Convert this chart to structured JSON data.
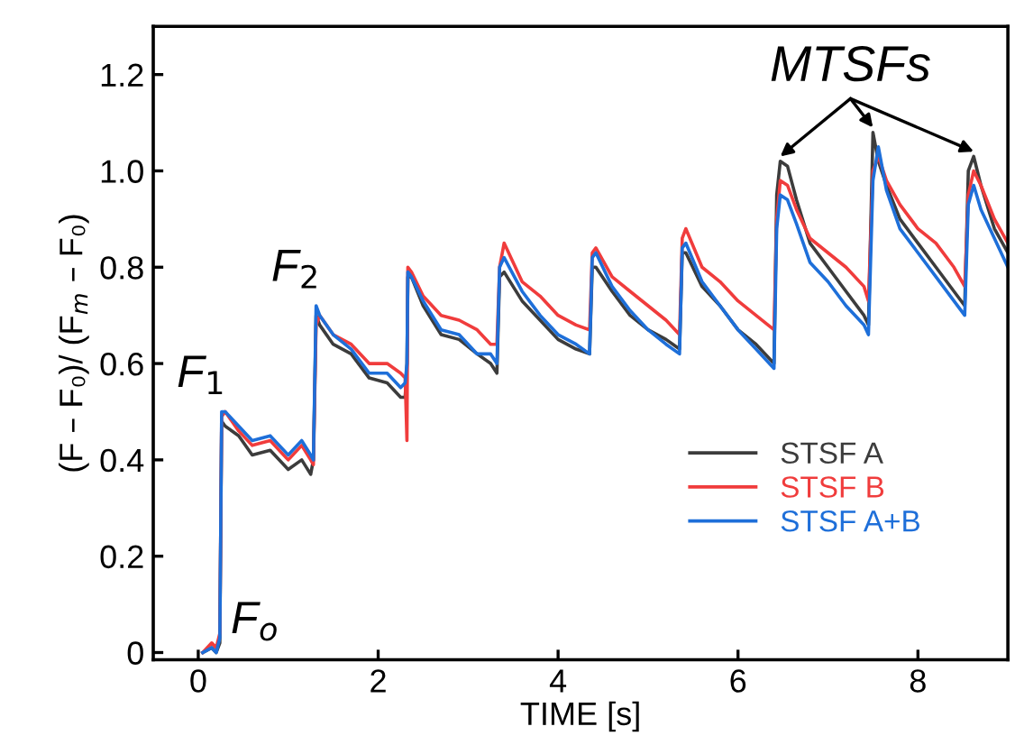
{
  "chart_data": {
    "type": "line",
    "xlabel": "TIME [s]",
    "ylabel": "(F – F₀)/ (F$_{m}$ – F₀)",
    "xlim": [
      -0.5,
      9.0
    ],
    "xticks": [
      0,
      2,
      4,
      6,
      8
    ],
    "ylim": [
      -0.015,
      1.3
    ],
    "yticks": [
      0,
      {
        "value": 0.2,
        "label": "0.2"
      },
      {
        "value": 0.4,
        "label": "0.4"
      },
      {
        "value": 0.6,
        "label": "0.6"
      },
      {
        "value": 0.8,
        "label": "0.8"
      },
      {
        "value": 1.0,
        "label": "1.0"
      },
      {
        "value": 1.2,
        "label": "1.2"
      }
    ],
    "x": [
      0.05,
      0.15,
      0.2,
      0.24,
      0.26,
      0.3,
      0.45,
      0.6,
      0.8,
      1.0,
      1.15,
      1.25,
      1.28,
      1.31,
      1.35,
      1.5,
      1.7,
      1.9,
      2.1,
      2.25,
      2.3,
      2.32,
      2.33,
      2.37,
      2.5,
      2.7,
      2.9,
      3.1,
      3.25,
      3.32,
      3.35,
      3.4,
      3.6,
      3.8,
      4.0,
      4.2,
      4.35,
      4.38,
      4.42,
      4.6,
      4.8,
      5.0,
      5.2,
      5.35,
      5.38,
      5.42,
      5.6,
      5.8,
      6.0,
      6.2,
      6.4,
      6.43,
      6.47,
      6.55,
      6.65,
      6.8,
      7.0,
      7.2,
      7.4,
      7.45,
      7.5,
      7.56,
      7.65,
      7.8,
      8.0,
      8.2,
      8.4,
      8.52,
      8.56,
      8.62,
      8.7,
      8.85,
      9.0
    ],
    "series": [
      {
        "name": "STSF A",
        "color": "#3c3c3c",
        "values": [
          0,
          0.01,
          0,
          0.02,
          0.48,
          0.47,
          0.45,
          0.41,
          0.42,
          0.38,
          0.4,
          0.37,
          0.4,
          0.7,
          0.68,
          0.64,
          0.62,
          0.57,
          0.56,
          0.53,
          0.53,
          0.6,
          0.78,
          0.78,
          0.72,
          0.66,
          0.65,
          0.62,
          0.6,
          0.58,
          0.78,
          0.79,
          0.73,
          0.69,
          0.65,
          0.63,
          0.62,
          0.8,
          0.8,
          0.75,
          0.7,
          0.67,
          0.65,
          0.63,
          0.83,
          0.83,
          0.76,
          0.72,
          0.67,
          0.64,
          0.6,
          0.95,
          1.02,
          1.01,
          0.94,
          0.85,
          0.8,
          0.75,
          0.7,
          0.68,
          1.08,
          1.02,
          0.97,
          0.9,
          0.85,
          0.8,
          0.75,
          0.72,
          1.0,
          1.03,
          0.97,
          0.88,
          0.83
        ]
      },
      {
        "name": "STSF B",
        "color": "#f03c3c",
        "values": [
          0,
          0.02,
          0.01,
          0.04,
          0.49,
          0.5,
          0.46,
          0.43,
          0.44,
          0.4,
          0.43,
          0.4,
          0.39,
          0.68,
          0.7,
          0.66,
          0.64,
          0.6,
          0.6,
          0.58,
          0.57,
          0.44,
          0.8,
          0.79,
          0.74,
          0.7,
          0.69,
          0.67,
          0.64,
          0.64,
          0.8,
          0.85,
          0.77,
          0.74,
          0.7,
          0.68,
          0.67,
          0.83,
          0.84,
          0.78,
          0.75,
          0.72,
          0.69,
          0.66,
          0.86,
          0.88,
          0.8,
          0.77,
          0.73,
          0.7,
          0.67,
          0.9,
          0.98,
          0.97,
          0.92,
          0.86,
          0.83,
          0.8,
          0.76,
          0.73,
          1.0,
          1.03,
          0.98,
          0.93,
          0.88,
          0.85,
          0.8,
          0.76,
          0.95,
          1.0,
          0.97,
          0.9,
          0.85
        ]
      },
      {
        "name": "STSF A+B",
        "color": "#1e6fd9",
        "values": [
          0,
          0.01,
          0.0,
          0.03,
          0.5,
          0.5,
          0.47,
          0.44,
          0.45,
          0.41,
          0.44,
          0.41,
          0.4,
          0.72,
          0.7,
          0.66,
          0.63,
          0.58,
          0.58,
          0.55,
          0.56,
          0.6,
          0.79,
          0.78,
          0.73,
          0.67,
          0.66,
          0.62,
          0.62,
          0.6,
          0.8,
          0.82,
          0.75,
          0.7,
          0.66,
          0.64,
          0.62,
          0.82,
          0.83,
          0.76,
          0.71,
          0.67,
          0.64,
          0.62,
          0.84,
          0.85,
          0.77,
          0.72,
          0.67,
          0.63,
          0.59,
          0.88,
          0.95,
          0.94,
          0.89,
          0.81,
          0.77,
          0.72,
          0.68,
          0.66,
          0.98,
          1.05,
          0.96,
          0.88,
          0.83,
          0.78,
          0.73,
          0.7,
          0.93,
          0.97,
          0.92,
          0.86,
          0.8
        ]
      }
    ],
    "annotations": [
      {
        "text": "F$_{o}$",
        "x": 0.25,
        "y": 0.0
      },
      {
        "text": "F$_{1}$",
        "x": 0.26,
        "y": 0.48
      },
      {
        "text": "F$_{2}$",
        "x": 1.31,
        "y": 0.7
      },
      {
        "text": "MTSFs",
        "x": 7.5,
        "y": 1.08
      }
    ],
    "legend": "lower right",
    "grid": false,
    "line_style": "solid",
    "marker": "none"
  }
}
